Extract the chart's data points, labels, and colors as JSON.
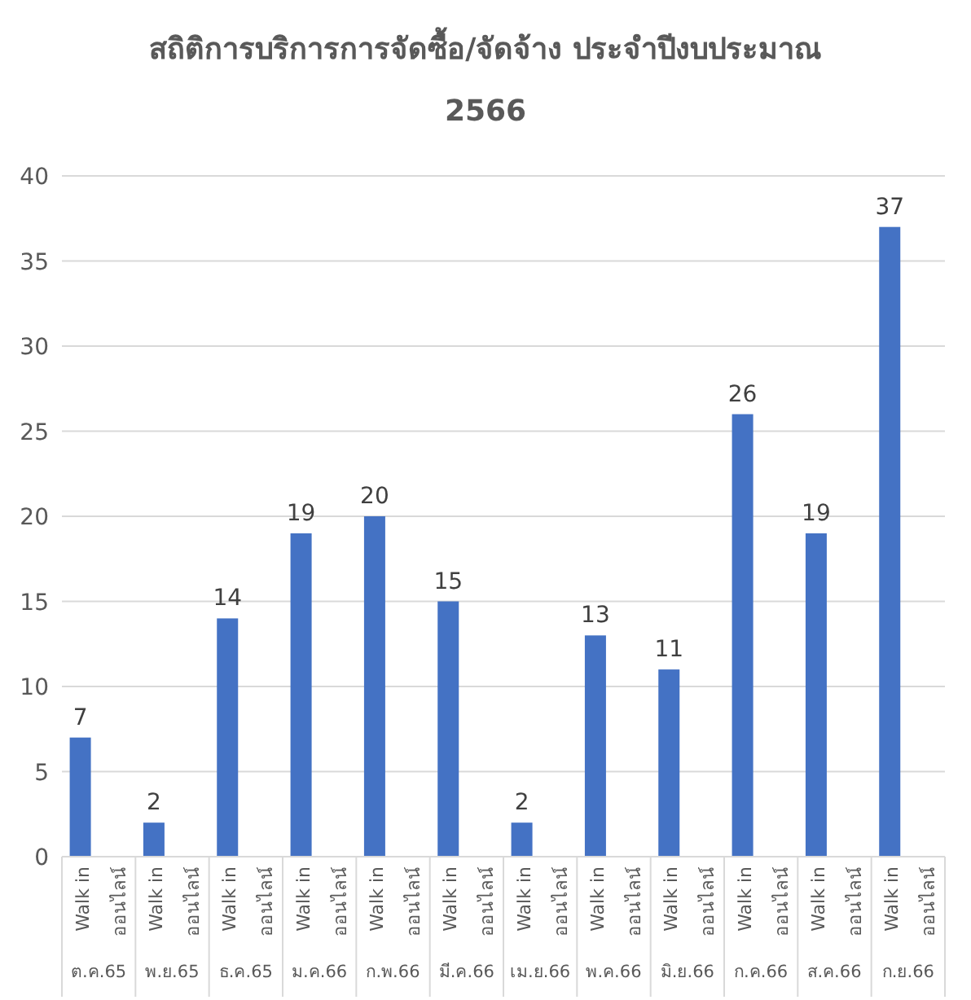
{
  "chart_data": {
    "type": "bar",
    "title": "สถิติการบริการการจัดซื้อ/จัดจ้าง ประจำปีงบประมาณ 2566",
    "categories": [
      "Walk in",
      "ออนไลน์",
      "Walk in",
      "ออนไลน์",
      "Walk in",
      "ออนไลน์",
      "Walk in",
      "ออนไลน์",
      "Walk in",
      "ออนไลน์",
      "Walk in",
      "ออนไลน์",
      "Walk in",
      "ออนไลน์",
      "Walk in",
      "ออนไลน์",
      "Walk in",
      "ออนไลน์",
      "Walk in",
      "ออนไลน์",
      "Walk in",
      "ออนไลน์",
      "Walk in",
      "ออนไลน์"
    ],
    "annotations": [
      "ต.ค.65",
      "พ.ย.65",
      "ธ.ค.65",
      "ม.ค.66",
      "ก.พ.66",
      "มี.ค.66",
      "เม.ย.66",
      "พ.ค.66",
      "มิ.ย.66",
      "ก.ค.66",
      "ส.ค.66",
      "ก.ย.66"
    ],
    "values": [
      7,
      null,
      2,
      null,
      14,
      null,
      19,
      null,
      20,
      null,
      15,
      null,
      2,
      null,
      13,
      null,
      11,
      null,
      26,
      null,
      19,
      null,
      37,
      null
    ],
    "color": "#4472c4",
    "data_labels": true,
    "ylim": [
      0,
      40
    ],
    "yticks": [
      0,
      5,
      10,
      15,
      20,
      25,
      30,
      35,
      40
    ],
    "grid": "y"
  }
}
